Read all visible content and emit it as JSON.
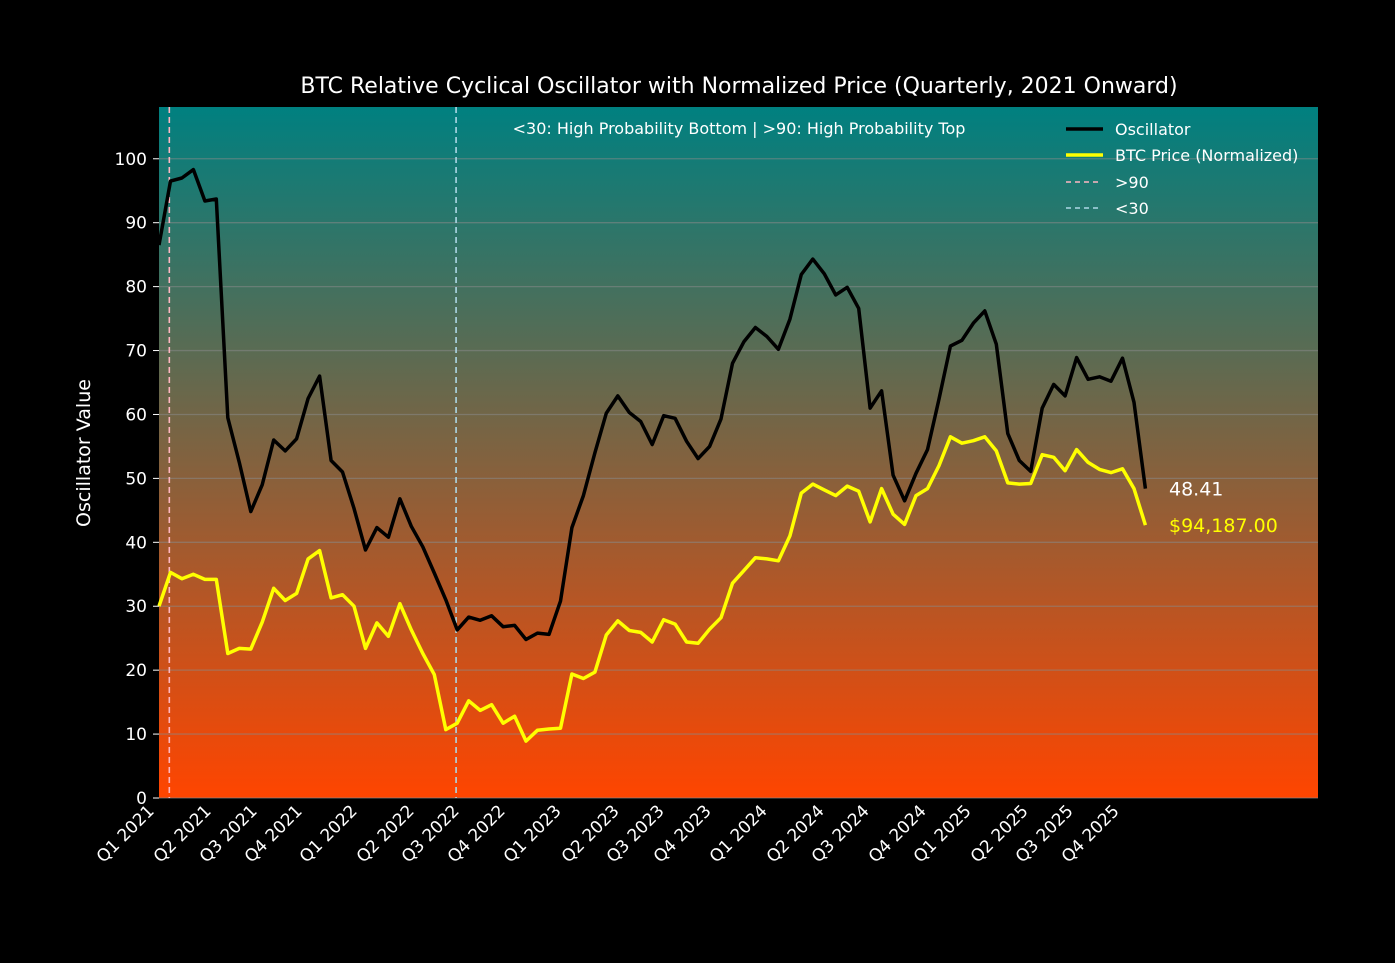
{
  "chart_data": {
    "type": "line",
    "title": "BTC Relative Cyclical Oscillator with Normalized Price (Quarterly, 2021 Onward)",
    "xlabel": "",
    "ylabel": "Oscillator Value",
    "ylim": [
      0,
      108
    ],
    "yticks": [
      0,
      10,
      20,
      30,
      40,
      50,
      60,
      70,
      80,
      90,
      100
    ],
    "xtick_labels": [
      "Q1 2021",
      "Q2 2021",
      "Q3 2021",
      "Q4 2021",
      "Q1 2022",
      "Q2 2022",
      "Q3 2022",
      "Q4 2022",
      "Q1 2023",
      "Q2 2023",
      "Q3 2023",
      "Q4 2023",
      "Q1 2024",
      "Q2 2024",
      "Q3 2024",
      "Q4 2024",
      "Q1 2025",
      "Q2 2025",
      "Q3 2025",
      "Q4 2025"
    ],
    "grid": true,
    "legend_placement": "top-right",
    "annotation": "<30: High Probability Bottom | >90: High Probability Top",
    "background_gradient": {
      "top": "#008080",
      "bottom": "#FF4500"
    },
    "series": [
      {
        "name": "Oscillator",
        "color": "#000000",
        "values": [
          86.5,
          96.5,
          97,
          98.3,
          93.4,
          93.7,
          59.5,
          52.5,
          44.8,
          49,
          56,
          54.3,
          56.2,
          62.5,
          66,
          52.8,
          51,
          45.3,
          38.8,
          42.3,
          40.8,
          46.8,
          42.5,
          39.3,
          35.2,
          31,
          26.3,
          28.3,
          27.8,
          28.5,
          26.8,
          27,
          24.8,
          25.8,
          25.6,
          30.8,
          42.3,
          47.3,
          54,
          60.2,
          62.9,
          60.3,
          58.9,
          55.3,
          59.8,
          59.4,
          55.8,
          53.1,
          55,
          59.3,
          68,
          71.4,
          73.6,
          72.2,
          70.2,
          74.9,
          81.9,
          84.3,
          82,
          78.7,
          79.9,
          76.6,
          61,
          63.7,
          50.5,
          46.5,
          50.8,
          54.5,
          62.4,
          70.7,
          71.6,
          74.3,
          76.2,
          71,
          57,
          52.8,
          51.1,
          61,
          64.7,
          62.9,
          68.9,
          65.5,
          65.9,
          65.2,
          68.8,
          61.9,
          48.41
        ]
      },
      {
        "name": "BTC Price (Normalized)",
        "color": "#FFFF00",
        "values": [
          30,
          35.3,
          34.3,
          35,
          34.2,
          34.2,
          22.6,
          23.4,
          23.3,
          27.5,
          32.8,
          30.9,
          32,
          37.4,
          38.7,
          31.3,
          31.8,
          30,
          23.4,
          27.4,
          25.3,
          30.4,
          26.3,
          22.6,
          19.3,
          10.7,
          11.7,
          15.2,
          13.7,
          14.6,
          11.7,
          12.8,
          8.9,
          10.6,
          10.8,
          10.9,
          19.4,
          18.7,
          19.7,
          25.5,
          27.7,
          26.2,
          25.9,
          24.4,
          27.9,
          27.2,
          24.4,
          24.2,
          26.4,
          28.2,
          33.6,
          35.6,
          37.6,
          37.4,
          37.1,
          41,
          47.7,
          49.1,
          48.2,
          47.3,
          48.8,
          48,
          43.2,
          48.4,
          44.4,
          42.8,
          47.3,
          48.4,
          52,
          56.5,
          55.5,
          55.9,
          56.5,
          54.3,
          49.3,
          49.1,
          49.2,
          53.7,
          53.3,
          51.2,
          54.5,
          52.5,
          51.4,
          50.9,
          51.5,
          48.4,
          42.7
        ]
      }
    ],
    "threshold_lines": [
      {
        "name": ">90",
        "color": "#FFB6C1",
        "style": "dashed"
      },
      {
        "name": "<30",
        "color": "#ADD8E6",
        "style": "dashed"
      }
    ],
    "end_labels": {
      "oscillator": "48.41",
      "price": "$94,187.00"
    }
  }
}
